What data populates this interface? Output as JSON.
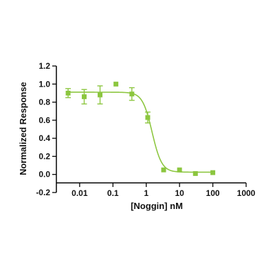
{
  "chart_data": {
    "type": "scatter",
    "xlabel": "[Noggin] nM",
    "ylabel": "Normalized Response",
    "x_scale": "log",
    "xlim": [
      0.002,
      1000
    ],
    "ylim": [
      -0.2,
      1.2
    ],
    "x_ticks": [
      0.01,
      0.1,
      1,
      10,
      100,
      1000
    ],
    "x_tick_labels": [
      "0.01",
      "0.1",
      "1",
      "10",
      "100",
      "1000"
    ],
    "y_ticks": [
      -0.2,
      0,
      0.2,
      0.4,
      0.6,
      0.8,
      1.0,
      1.2
    ],
    "y_tick_labels": [
      "-0.2",
      "0.0",
      "0.2",
      "0.4",
      "0.6",
      "0.8",
      "1.0",
      "1.2"
    ],
    "grid": false,
    "legend": "none",
    "color": "#8cc63f",
    "series": [
      {
        "x": [
          0.0045,
          0.0137,
          0.041,
          0.123,
          0.37,
          1.11,
          3.33,
          10,
          30,
          100
        ],
        "y": [
          0.9,
          0.86,
          0.88,
          1.0,
          0.89,
          0.63,
          0.05,
          0.05,
          0.01,
          0.02
        ],
        "error": [
          0.05,
          0.08,
          0.1,
          0.0,
          0.07,
          0.06,
          0.0,
          0.0,
          0.0,
          0.0
        ]
      }
    ],
    "fit": {
      "type": "four-parameter logistic",
      "top": 0.91,
      "bottom": 0.025,
      "ic50": 1.5,
      "hill": -3.0
    }
  }
}
